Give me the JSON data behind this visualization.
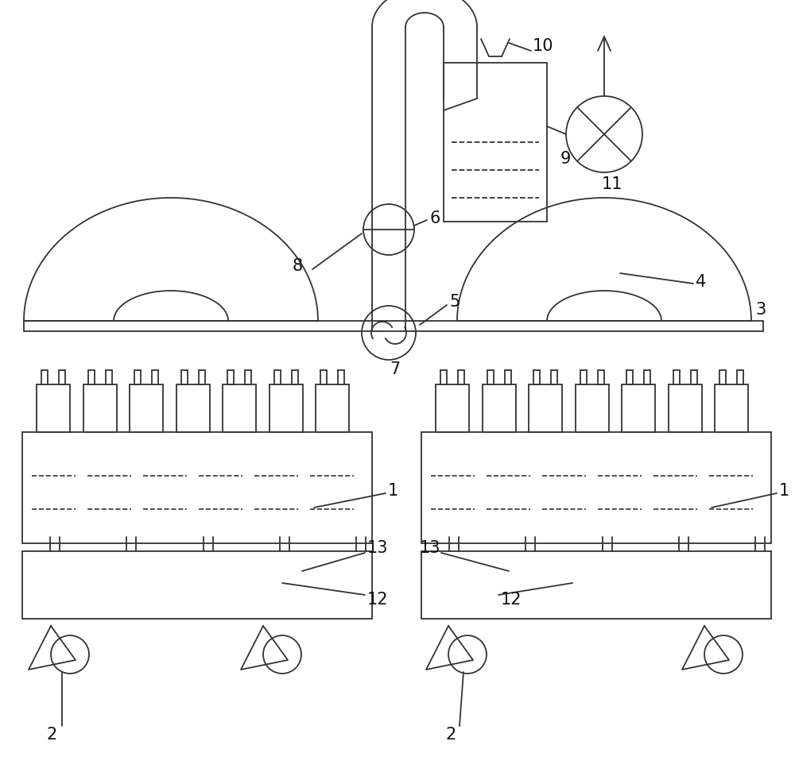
{
  "bg_color": "#ffffff",
  "line_color": "#333333",
  "label_color": "#111111",
  "fig_width": 10.0,
  "fig_height": 9.78,
  "lw": 1.3
}
